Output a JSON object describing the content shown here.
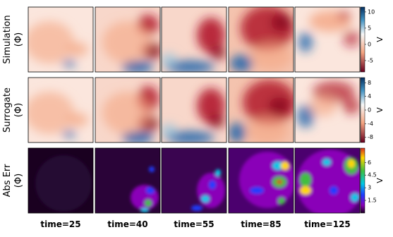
{
  "rows": [
    {
      "label": "Simulation",
      "sublabel": "(Φ)",
      "colorbar": {
        "label": "V",
        "lim": [
          -8.5,
          11.5
        ],
        "ticks": [
          10,
          5,
          0,
          -5
        ]
      }
    },
    {
      "label": "Surrogate",
      "sublabel": "(Φ)",
      "colorbar": {
        "label": "V",
        "lim": [
          -9.5,
          9.5
        ],
        "ticks": [
          8,
          4,
          0,
          -4,
          -8
        ]
      }
    },
    {
      "label": "Abs Err",
      "sublabel": "(Φ)",
      "colorbar": {
        "label": "V",
        "lim": [
          0,
          7.7
        ],
        "ticks": [
          6,
          4.5,
          3,
          1.5
        ]
      }
    }
  ],
  "columns": [
    "time=25",
    "time=40",
    "time=55",
    "time=85",
    "time=125"
  ]
}
